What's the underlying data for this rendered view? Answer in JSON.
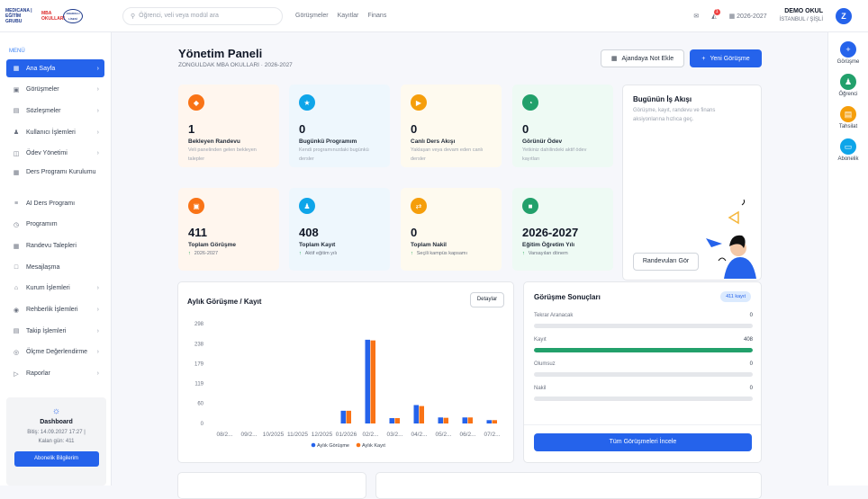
{
  "topbar": {
    "logos": [
      "MEDICANA | EĞİTİM GRUBU",
      "MBA OKULLARI",
      "ANADOLU LİSESİ"
    ],
    "search_placeholder": "Öğrenci, veli veya modül ara",
    "nav": [
      "Görüşmeler",
      "Kayıtlar",
      "Finans"
    ],
    "notification_count": "1",
    "season": "2026-2027",
    "user_name": "DEMO OKUL",
    "user_branch": "İSTANBUL / ŞİŞLİ",
    "avatar_letter": "Z"
  },
  "sidebar": {
    "menu_label": "MENÜ",
    "items": [
      {
        "label": "Ana Sayfa",
        "icon": "grid-icon",
        "chevron": true,
        "active": true
      },
      {
        "label": "Görüşmeler",
        "icon": "user-badge-icon",
        "chevron": true
      },
      {
        "label": "Sözleşmeler",
        "icon": "document-icon",
        "chevron": true
      },
      {
        "label": "Kullanıcı İşlemleri",
        "icon": "users-icon",
        "chevron": true
      },
      {
        "label": "Ödev Yönetimi",
        "icon": "book-icon",
        "chevron": true
      },
      {
        "label": "Ders Programı Kurulumu",
        "icon": "calendar-icon",
        "chevron": false
      },
      {
        "label": "AI Ders Programı",
        "icon": "sliders-icon",
        "chevron": false
      },
      {
        "label": "Programım",
        "icon": "clock-icon",
        "chevron": false
      },
      {
        "label": "Randevu Talepleri",
        "icon": "calendar-check-icon",
        "chevron": false
      },
      {
        "label": "Mesajlaşma",
        "icon": "message-icon",
        "chevron": false
      },
      {
        "label": "Kurum İşlemleri",
        "icon": "home-icon",
        "chevron": true
      },
      {
        "label": "Rehberlik İşlemleri",
        "icon": "compass-icon",
        "chevron": true
      },
      {
        "label": "Takip İşlemleri",
        "icon": "clipboard-icon",
        "chevron": true
      },
      {
        "label": "Ölçme Değerlendirme",
        "icon": "target-icon",
        "chevron": true
      },
      {
        "label": "Raporlar",
        "icon": "send-icon",
        "chevron": true
      }
    ],
    "dashboard": {
      "title": "Dashboard",
      "expiry": "Bitiş: 14.09.2027 17:27 |",
      "remaining": "Kalan gün: 411",
      "button": "Abonelik Bilgilerim"
    }
  },
  "rightbar": {
    "items": [
      {
        "label": "Görüşme",
        "icon": "plus-icon",
        "color": "#2563eb"
      },
      {
        "label": "Öğrenci",
        "icon": "user-plus-icon",
        "color": "#22a06b"
      },
      {
        "label": "Tahsilat",
        "icon": "receipt-icon",
        "color": "#f59e0b"
      },
      {
        "label": "Abonelik",
        "icon": "card-icon",
        "color": "#0ea5e9"
      }
    ]
  },
  "page": {
    "title": "Yönetim Paneli",
    "subtitle": "ZONGULDAK MBA OKULLARI · 2026-2027",
    "agenda_button": "Ajandaya Not Ekle",
    "new_button": "Yeni Görüşme"
  },
  "cards": [
    {
      "num": "1",
      "label": "Bekleyen Randevu",
      "desc": "Veli panelinden gelen bekleyen talepler",
      "icon": "shield-icon",
      "bg": "#fff6ee",
      "accent": "#f97316"
    },
    {
      "num": "0",
      "label": "Bugünkü Programım",
      "desc": "Kendi programınızdaki bugünkü dersler",
      "icon": "run-icon",
      "bg": "#eef7fd",
      "accent": "#0ea5e9"
    },
    {
      "num": "0",
      "label": "Canlı Ders Akışı",
      "desc": "Yaklaşan veya devam eden canlı dersler",
      "icon": "video-icon",
      "bg": "#fefaef",
      "accent": "#f59e0b"
    },
    {
      "num": "0",
      "label": "Görünür Ödev",
      "desc": "Yetkiniz dahilindeki aktif ödev kayıtları",
      "icon": "pie-icon",
      "bg": "#eefaf4",
      "accent": "#22a06b"
    },
    {
      "num": "411",
      "label": "Toplam Görüşme",
      "desc": "2026-2027",
      "icon": "user-badge-icon",
      "bg": "#fff6ee",
      "accent": "#f97316"
    },
    {
      "num": "408",
      "label": "Toplam Kayıt",
      "desc": "Aktif eğitim yılı",
      "icon": "user-add-icon",
      "bg": "#eef7fd",
      "accent": "#0ea5e9"
    },
    {
      "num": "0",
      "label": "Toplam Nakil",
      "desc": "Seçili kampüs kapsamı",
      "icon": "transfer-icon",
      "bg": "#fefaef",
      "accent": "#f59e0b"
    },
    {
      "num": "2026-2027",
      "label": "Eğitim Öğretim Yılı",
      "desc": "Varsayılan dönem",
      "icon": "school-icon",
      "bg": "#eefaf4",
      "accent": "#22a06b"
    }
  ],
  "today": {
    "title": "Bugünün İş Akışı",
    "desc": "Görüşme, kayıt, randevu ve finans aksiyonlarına hızlıca geç.",
    "button": "Randevuları Gör"
  },
  "chart_panel": {
    "title": "Aylık Görüşme / Kayıt",
    "button": "Detaylar"
  },
  "chart_data": {
    "type": "bar",
    "title": "Aylık Görüşme / Kayıt",
    "categories": [
      "08/2...",
      "09/2...",
      "10/2025",
      "11/2025",
      "12/2025",
      "01/2026",
      "02/2...",
      "03/2...",
      "04/2...",
      "05/2...",
      "06/2...",
      "07/2..."
    ],
    "series": [
      {
        "name": "Aylık Görüşme",
        "color": "#2563eb",
        "values": [
          0,
          0,
          0,
          0,
          0,
          38,
          250,
          16,
          55,
          18,
          18,
          10
        ]
      },
      {
        "name": "Aylık Kayıt",
        "color": "#f97316",
        "values": [
          0,
          0,
          0,
          0,
          0,
          38,
          248,
          16,
          52,
          17,
          18,
          10
        ]
      }
    ],
    "yticks": [
      "298",
      "238",
      "179",
      "119",
      "60",
      "0"
    ],
    "ylim": [
      0,
      298
    ],
    "grid": false,
    "legend": "bottom"
  },
  "results": {
    "title": "Görüşme Sonuçları",
    "badge": "411 kayıt",
    "rows": [
      {
        "label": "Tekrar Aranacak",
        "value": "0",
        "fraction": 0
      },
      {
        "label": "Kayıt",
        "value": "408",
        "fraction": 1
      },
      {
        "label": "Olumsuz",
        "value": "0",
        "fraction": 0
      },
      {
        "label": "Nakil",
        "value": "0",
        "fraction": 0
      }
    ],
    "button": "Tüm Görüşmeleri İncele"
  }
}
